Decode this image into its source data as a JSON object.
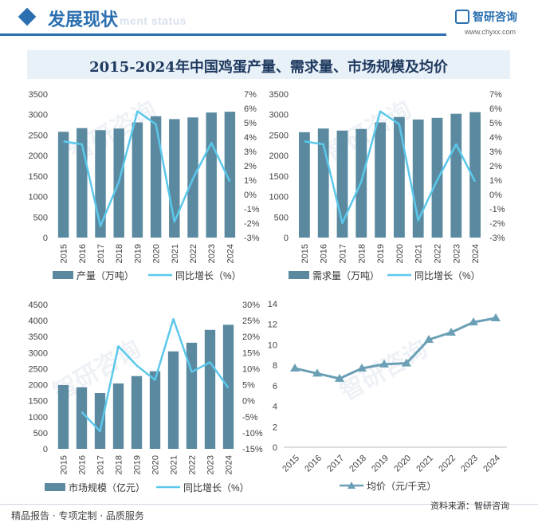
{
  "header": {
    "section_title": "发展现状",
    "section_subtitle": "ment status",
    "brand_name": "智研咨询",
    "brand_url": "www.chyxx.com"
  },
  "main_title": "2015-2024年中国鸡蛋产量、需求量、市场规模及均价",
  "footer": {
    "left": "精品报告 · 专项定制 · 品质服务",
    "source": "资料来源：智研咨询"
  },
  "watermark": "智研咨询",
  "colors": {
    "bar": "#5b8aa0",
    "line": "#5bc8eb",
    "accent": "#2a6fb0"
  },
  "chart_data": [
    {
      "type": "bar",
      "categories": [
        "2015",
        "2016",
        "2017",
        "2018",
        "2019",
        "2020",
        "2021",
        "2022",
        "2023",
        "2024"
      ],
      "series": [
        {
          "name": "产量（万吨）",
          "type": "bar",
          "axis": "left",
          "values": [
            2580,
            2670,
            2620,
            2660,
            2810,
            2960,
            2890,
            2930,
            3050,
            3070
          ]
        },
        {
          "name": "同比增长（%）",
          "type": "line",
          "axis": "right",
          "values": [
            3.7,
            3.5,
            -2.2,
            0.9,
            5.8,
            4.9,
            -1.9,
            1.1,
            3.6,
            0.9
          ]
        }
      ],
      "ylim_left": [
        0,
        3500
      ],
      "yticks_left": [
        0,
        500,
        1000,
        1500,
        2000,
        2500,
        3000,
        3500
      ],
      "ylim_right": [
        -3,
        7
      ],
      "yticks_right": [
        "-3%",
        "-2%",
        "-1%",
        "0%",
        "1%",
        "2%",
        "3%",
        "4%",
        "5%",
        "6%",
        "7%"
      ],
      "legend": "bottom"
    },
    {
      "type": "bar",
      "categories": [
        "2015",
        "2016",
        "2017",
        "2018",
        "2019",
        "2020",
        "2021",
        "2022",
        "2023",
        "2024"
      ],
      "series": [
        {
          "name": "需求量（万吨）",
          "type": "bar",
          "axis": "left",
          "values": [
            2570,
            2660,
            2610,
            2650,
            2810,
            2940,
            2880,
            2920,
            3020,
            3060
          ]
        },
        {
          "name": "同比增长（%）",
          "type": "line",
          "axis": "right",
          "values": [
            3.7,
            3.5,
            -2.0,
            0.9,
            5.8,
            4.9,
            -1.8,
            1.0,
            3.5,
            0.9
          ]
        }
      ],
      "ylim_left": [
        0,
        3500
      ],
      "yticks_left": [
        0,
        500,
        1000,
        1500,
        2000,
        2500,
        3000,
        3500
      ],
      "ylim_right": [
        -3,
        7
      ],
      "yticks_right": [
        "-3%",
        "-2%",
        "-1%",
        "0%",
        "1%",
        "2%",
        "3%",
        "4%",
        "5%",
        "6%",
        "7%"
      ],
      "legend": "bottom"
    },
    {
      "type": "bar",
      "categories": [
        "2015",
        "2016",
        "2017",
        "2018",
        "2019",
        "2020",
        "2021",
        "2022",
        "2023",
        "2024"
      ],
      "series": [
        {
          "name": "市场规模（亿元）",
          "type": "bar",
          "axis": "left",
          "values": [
            1990,
            1920,
            1740,
            2040,
            2270,
            2420,
            3040,
            3310,
            3710,
            3870
          ]
        },
        {
          "name": "同比增长（%）",
          "type": "line",
          "axis": "right",
          "values": [
            null,
            -3.5,
            -9.5,
            17.0,
            11.0,
            6.5,
            25.5,
            9.0,
            12.0,
            4.0
          ]
        }
      ],
      "ylim_left": [
        0,
        4500
      ],
      "yticks_left": [
        0,
        500,
        1000,
        1500,
        2000,
        2500,
        3000,
        3500,
        4000,
        4500
      ],
      "ylim_right": [
        -15,
        30
      ],
      "yticks_right": [
        "-15%",
        "-10%",
        "-5%",
        "0%",
        "5%",
        "10%",
        "15%",
        "20%",
        "25%",
        "30%"
      ],
      "legend": "bottom"
    },
    {
      "type": "line",
      "categories": [
        "2015",
        "2016",
        "2017",
        "2018",
        "2019",
        "2020",
        "2021",
        "2022",
        "2023",
        "2024"
      ],
      "series": [
        {
          "name": "均价（元/千克）",
          "values": [
            7.7,
            7.2,
            6.7,
            7.7,
            8.1,
            8.2,
            10.5,
            11.2,
            12.2,
            12.6
          ]
        }
      ],
      "ylim": [
        0,
        14
      ],
      "yticks": [
        0,
        2,
        4,
        6,
        8,
        10,
        12,
        14
      ],
      "legend": "bottom"
    }
  ]
}
